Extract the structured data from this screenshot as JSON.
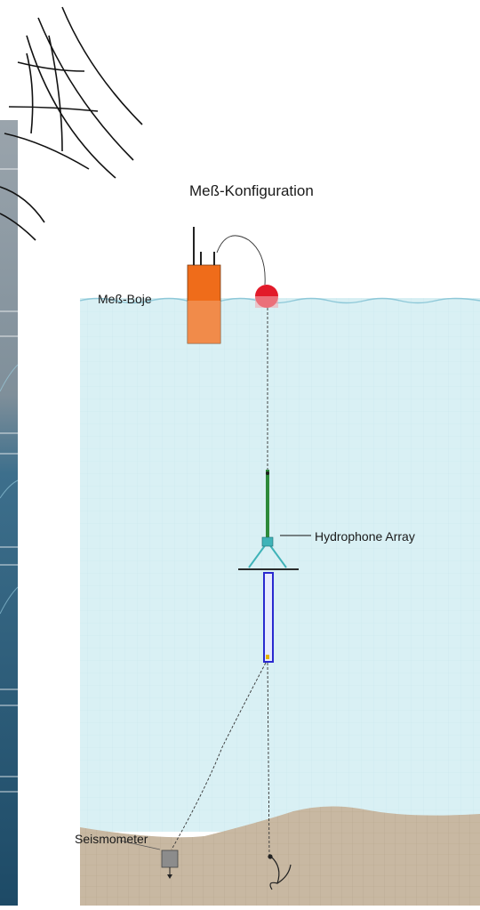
{
  "diagram": {
    "title": "Meß-Konfiguration",
    "labels": {
      "buoy": "Meß-Boje",
      "hydrophone_array": "Hydrophone Array",
      "seismometer": "Seismometer"
    },
    "colors": {
      "water": "#d9f0f4",
      "seabed": "#c8b8a2",
      "buoy_box": "#ef6c1a",
      "float": "#e21b2a",
      "array_upper": "#2c8a3a",
      "array_lower": "#2a2ad0",
      "array_frame": "#3fb3b8",
      "side_panel": "#2f5a78"
    },
    "icons": [
      "antenna-icon",
      "radio-wave-icon",
      "anchor-icon"
    ]
  }
}
